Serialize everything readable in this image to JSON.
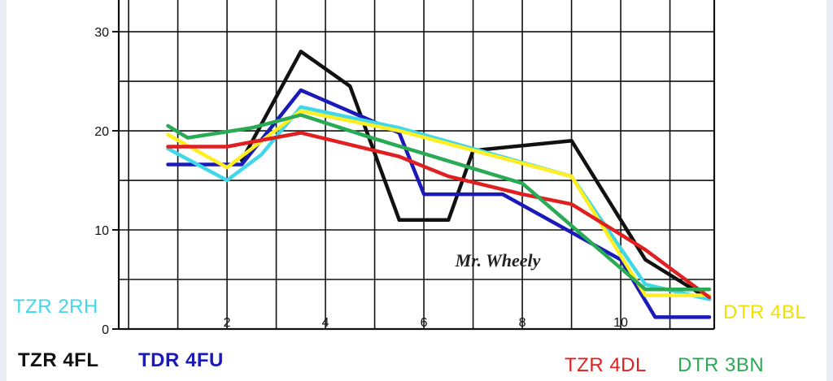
{
  "chart_data": {
    "type": "line",
    "x_ticks": [
      2,
      4,
      6,
      8,
      10
    ],
    "y_ticks": [
      0,
      10,
      20,
      30
    ],
    "xlim": [
      -0.2,
      11.9
    ],
    "ylim": [
      0,
      33.2
    ],
    "grid": true,
    "annotation": "Mr. Wheely",
    "series": [
      {
        "name": "TZR 4FL",
        "color": "#111111",
        "points": [
          [
            2.3,
            17.0
          ],
          [
            3.5,
            28.0
          ],
          [
            4.5,
            24.5
          ],
          [
            5.5,
            11.0
          ],
          [
            6.5,
            11.0
          ],
          [
            7.0,
            18.0
          ],
          [
            9.0,
            19.0
          ],
          [
            10.5,
            7.0
          ],
          [
            11.8,
            3.0
          ]
        ]
      },
      {
        "name": "TDR 4FU",
        "color": "#1a1ab8",
        "points": [
          [
            0.8,
            16.6
          ],
          [
            2.3,
            16.6
          ],
          [
            3.5,
            24.1
          ],
          [
            5.5,
            19.8
          ],
          [
            6.0,
            13.6
          ],
          [
            7.6,
            13.6
          ],
          [
            10.0,
            7.0
          ],
          [
            10.7,
            1.2
          ],
          [
            11.8,
            1.2
          ]
        ]
      },
      {
        "name": "TZR 2RH",
        "color": "#40d8e8",
        "points": [
          [
            0.8,
            18.2
          ],
          [
            2.0,
            15.0
          ],
          [
            2.7,
            17.6
          ],
          [
            3.5,
            22.4
          ],
          [
            5.5,
            20.3
          ],
          [
            9.0,
            15.4
          ],
          [
            10.5,
            4.5
          ],
          [
            11.8,
            3.0
          ]
        ]
      },
      {
        "name": "DTR 4BL",
        "color": "#ffee22",
        "points": [
          [
            0.8,
            19.6
          ],
          [
            2.0,
            16.3
          ],
          [
            3.5,
            22.0
          ],
          [
            5.5,
            20.0
          ],
          [
            9.0,
            15.4
          ],
          [
            10.5,
            3.4
          ],
          [
            11.8,
            3.4
          ]
        ]
      },
      {
        "name": "TZR 4DL",
        "color": "#e02020",
        "points": [
          [
            0.8,
            18.4
          ],
          [
            2.0,
            18.4
          ],
          [
            3.5,
            19.8
          ],
          [
            5.5,
            17.4
          ],
          [
            6.5,
            15.4
          ],
          [
            8.0,
            13.6
          ],
          [
            9.0,
            12.6
          ],
          [
            10.5,
            8.0
          ],
          [
            11.8,
            3.2
          ]
        ]
      },
      {
        "name": "DTR 3BN",
        "color": "#2aaa55",
        "points": [
          [
            0.8,
            20.5
          ],
          [
            1.2,
            19.3
          ],
          [
            2.5,
            20.3
          ],
          [
            3.5,
            21.6
          ],
          [
            5.0,
            19.2
          ],
          [
            8.0,
            14.7
          ],
          [
            10.5,
            4.0
          ],
          [
            11.8,
            4.0
          ]
        ]
      }
    ]
  },
  "legend_labels": {
    "tzr_2rh": "TZR 2RH",
    "tzr_4fl": "TZR 4FL",
    "tdr_4fu": "TDR 4FU",
    "dtr_4bl": "DTR 4BL",
    "tzr_4dl": "TZR 4DL",
    "dtr_3bn": "DTR 3BN"
  }
}
